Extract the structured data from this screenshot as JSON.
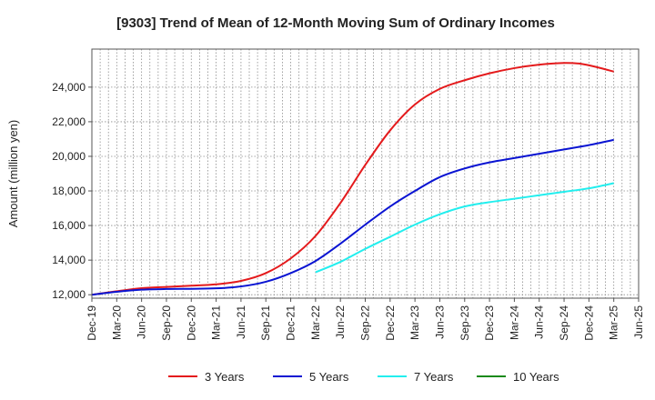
{
  "chart_data": {
    "type": "line",
    "title": "[9303]  Trend of Mean of 12-Month Moving Sum of Ordinary Incomes",
    "xlabel": "",
    "ylabel": "Amount (million yen)",
    "ylim": [
      11800,
      26200
    ],
    "y_ticks": [
      12000,
      14000,
      16000,
      18000,
      20000,
      22000,
      24000
    ],
    "y_tick_labels": [
      "12,000",
      "14,000",
      "16,000",
      "18,000",
      "20,000",
      "22,000",
      "24,000"
    ],
    "x_range": [
      0,
      66
    ],
    "x_ticks": [
      0,
      3,
      6,
      9,
      12,
      15,
      18,
      21,
      24,
      27,
      30,
      33,
      36,
      39,
      42,
      45,
      48,
      51,
      54,
      57,
      60,
      63,
      66
    ],
    "x_tick_labels": [
      "Dec-19",
      "Mar-20",
      "Jun-20",
      "Sep-20",
      "Dec-20",
      "Mar-21",
      "Jun-21",
      "Sep-21",
      "Dec-21",
      "Mar-22",
      "Jun-22",
      "Sep-22",
      "Dec-22",
      "Mar-23",
      "Jun-23",
      "Sep-23",
      "Dec-23",
      "Mar-24",
      "Jun-24",
      "Sep-24",
      "Dec-24",
      "Mar-25",
      "Jun-25"
    ],
    "x_minor_step": 1,
    "grid": true,
    "legend_position": "bottom",
    "series": [
      {
        "name": "3 Years",
        "color": "#e41a1c",
        "x": [
          0,
          3,
          6,
          9,
          12,
          15,
          18,
          21,
          24,
          27,
          30,
          33,
          36,
          39,
          42,
          45,
          48,
          51,
          54,
          57,
          59,
          61,
          63
        ],
        "values": [
          12000,
          12200,
          12380,
          12450,
          12520,
          12600,
          12800,
          13250,
          14100,
          15400,
          17300,
          19500,
          21500,
          23000,
          23900,
          24400,
          24800,
          25100,
          25300,
          25400,
          25350,
          25150,
          24900
        ]
      },
      {
        "name": "5 Years",
        "color": "#0a14d2",
        "x": [
          0,
          3,
          6,
          9,
          12,
          15,
          18,
          21,
          24,
          27,
          30,
          33,
          36,
          39,
          42,
          45,
          48,
          51,
          54,
          57,
          60,
          63
        ],
        "values": [
          12000,
          12170,
          12290,
          12330,
          12340,
          12370,
          12480,
          12750,
          13250,
          13950,
          14950,
          16050,
          17100,
          18000,
          18800,
          19300,
          19650,
          19900,
          20150,
          20400,
          20650,
          20950
        ]
      },
      {
        "name": "7 Years",
        "color": "#22eeee",
        "x": [
          27,
          30,
          33,
          36,
          39,
          42,
          45,
          48,
          51,
          54,
          57,
          60,
          63
        ],
        "values": [
          13300,
          13900,
          14650,
          15350,
          16050,
          16650,
          17100,
          17350,
          17550,
          17750,
          17950,
          18150,
          18450
        ]
      },
      {
        "name": "10 Years",
        "color": "#1a8a1a",
        "x": [],
        "values": []
      }
    ]
  }
}
